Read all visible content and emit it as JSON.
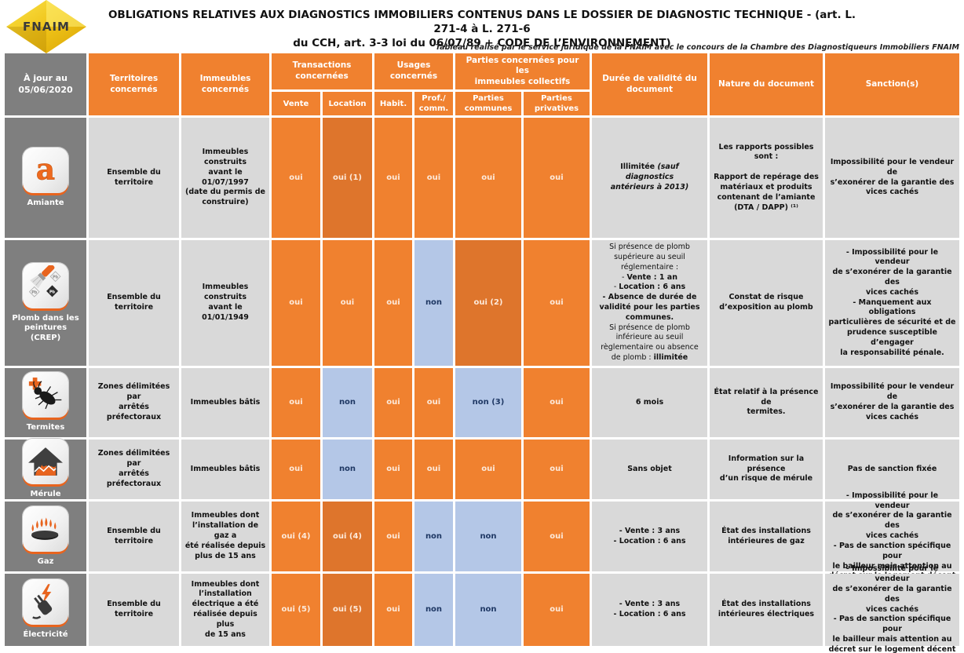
{
  "colors": {
    "orange": "#F0812F",
    "orange_dark": "#DE752C",
    "blue_cell": "#B4C7E7",
    "blue_text": "#1F3864",
    "gray_row_header": "#7F7F7F",
    "light_cell": "#D9D9D9",
    "oui_text": "#FDE9D9",
    "logo_yellow": "#F0C419"
  },
  "header": {
    "logo_text": "FNAIM",
    "title_line1": "OBLIGATIONS RELATIVES AUX DIAGNOSTICS IMMOBILIERS CONTENUS DANS LE DOSSIER DE DIAGNOSTIC TECHNIQUE - (art. L. 271-4 à L. 271-6",
    "title_line2": "du CCH, art. 3-3 loi du 06/07/89 + CODE DE L’ENVIRONNEMENT)",
    "subtitle": "Tableau réalisé par le service juridique de la FNAIM avec le concours de la Chambre des Diagnostiqueurs Immobiliers FNAIM"
  },
  "columns": {
    "updated": "À jour au\n05/06/2020",
    "territoires": "Territoires\nconcernés",
    "immeubles": "Immeubles\nconcernés",
    "transactions": "Transactions\nconcernées",
    "vente": "Vente",
    "location": "Location",
    "usages": "Usages\nconcernés",
    "habit": "Habit.",
    "prof": "Prof./\ncomm.",
    "parties": "Parties concernées pour les\nimmeubles collectifs",
    "parties_communes": "Parties\ncommunes",
    "parties_privatives": "Parties\nprivatives",
    "duree": "Durée de validité du\ndocument",
    "nature": "Nature du document",
    "sanctions": "Sanction(s)"
  },
  "rows": [
    {
      "label": "Amiante",
      "territoires": "Ensemble du\nterritoire",
      "immeubles": "Immeubles construits\navant le 01/07/1997\n(date du permis de\nconstruire)",
      "vente": "oui",
      "location": "oui (1)",
      "habit": "oui",
      "prof": "oui",
      "communes": "oui",
      "privatives": "oui",
      "duree_rich": [
        {
          "t": "Illimitée "
        },
        {
          "t": "(sauf diagnostics\nantérieurs à 2013)",
          "i": true
        }
      ],
      "nature": "Les rapports possibles sont :\n\nRapport de repérage des\nmatériaux et produits\ncontenant de l’amiante\n(DTA / DAPP) ⁽¹⁾",
      "sanctions": "Impossibilité pour le vendeur de\ns’exonérer de la garantie des\nvices cachés"
    },
    {
      "label": "Plomb dans les\npeintures\n(CREP)",
      "territoires": "Ensemble du\nterritoire",
      "immeubles": "Immeubles construits\navant le 01/01/1949",
      "vente": "oui",
      "location": "oui",
      "habit": "oui",
      "prof": "non",
      "communes": "oui (2)",
      "privatives": "oui",
      "duree_rich": [
        {
          "t": "Si présence de plomb\nsupérieure au seuil\nréglementaire :\n- "
        },
        {
          "t": "Vente : 1 an",
          "b": true
        },
        {
          "t": "\n- "
        },
        {
          "t": "Location : 6 ans",
          "b": true
        },
        {
          "t": "\n"
        },
        {
          "t": "- Absence de durée de\nvalidité pour les parties\ncommunes.",
          "b": true
        },
        {
          "t": "\nSi présence de plomb\ninférieure au seuil\nrèglementaire ou absence\nde plomb : "
        },
        {
          "t": "illimitée",
          "b": true
        }
      ],
      "nature": "Constat de risque\nd’exposition au plomb",
      "sanctions": "- Impossibilité pour le vendeur\nde s’exonérer de la garantie des\nvices cachés\n- Manquement aux obligations\nparticulières de sécurité et de\nprudence susceptible d’engager\nla responsabilité pénale."
    },
    {
      "label": "Termites",
      "territoires": "Zones délimitées par\narrêtés préfectoraux",
      "immeubles": "Immeubles bâtis",
      "vente": "oui",
      "location": "non",
      "habit": "oui",
      "prof": "oui",
      "communes": "non (3)",
      "privatives": "oui",
      "duree": "6 mois",
      "nature": "État relatif à la présence de\ntermites.",
      "sanctions": "Impossibilité pour le vendeur de\ns’exonérer de la garantie des\nvices cachés"
    },
    {
      "label": "Mérule",
      "territoires": "Zones délimitées par\narrêtés préfectoraux",
      "immeubles": "Immeubles bâtis",
      "vente": "oui",
      "location": "non",
      "habit": "oui",
      "prof": "oui",
      "communes": "oui",
      "privatives": "oui",
      "duree": "Sans objet",
      "nature": "Information sur la présence\nd’un risque de mérule",
      "sanctions": "Pas de sanction fixée"
    },
    {
      "label": "Gaz",
      "territoires": "Ensemble du\nterritoire",
      "immeubles": "Immeubles dont\nl’installation de gaz a\nété réalisée depuis\nplus de 15 ans",
      "vente": "oui (4)",
      "location": "oui (4)",
      "habit": "oui",
      "prof": "non",
      "communes": "non",
      "privatives": "oui",
      "duree": "- Vente : 3 ans\n- Location : 6 ans",
      "nature": "État des installations\nintérieures de gaz",
      "sanctions": "- Impossibilité pour le vendeur\nde s’exonérer de la garantie des\nvices cachés\n- Pas de sanction spécifique pour\nle bailleur mais attention au\ndécret sur le logement décent"
    },
    {
      "label": "Électricité",
      "territoires": "Ensemble du\nterritoire",
      "immeubles": "Immeubles dont\nl’installation\nélectrique a été\nréalisée depuis plus\nde 15 ans",
      "vente": "oui (5)",
      "location": "oui (5)",
      "habit": "oui",
      "prof": "non",
      "communes": "non",
      "privatives": "oui",
      "duree": "- Vente : 3 ans\n- Location : 6 ans",
      "nature": "État des installations\nintérieures électriques",
      "sanctions": "- Impossibilité pour le vendeur\nde s’exonérer de la garantie des\nvices cachés\n- Pas de sanction spécifique pour\nle bailleur mais attention au\ndécret sur le logement décent"
    }
  ]
}
